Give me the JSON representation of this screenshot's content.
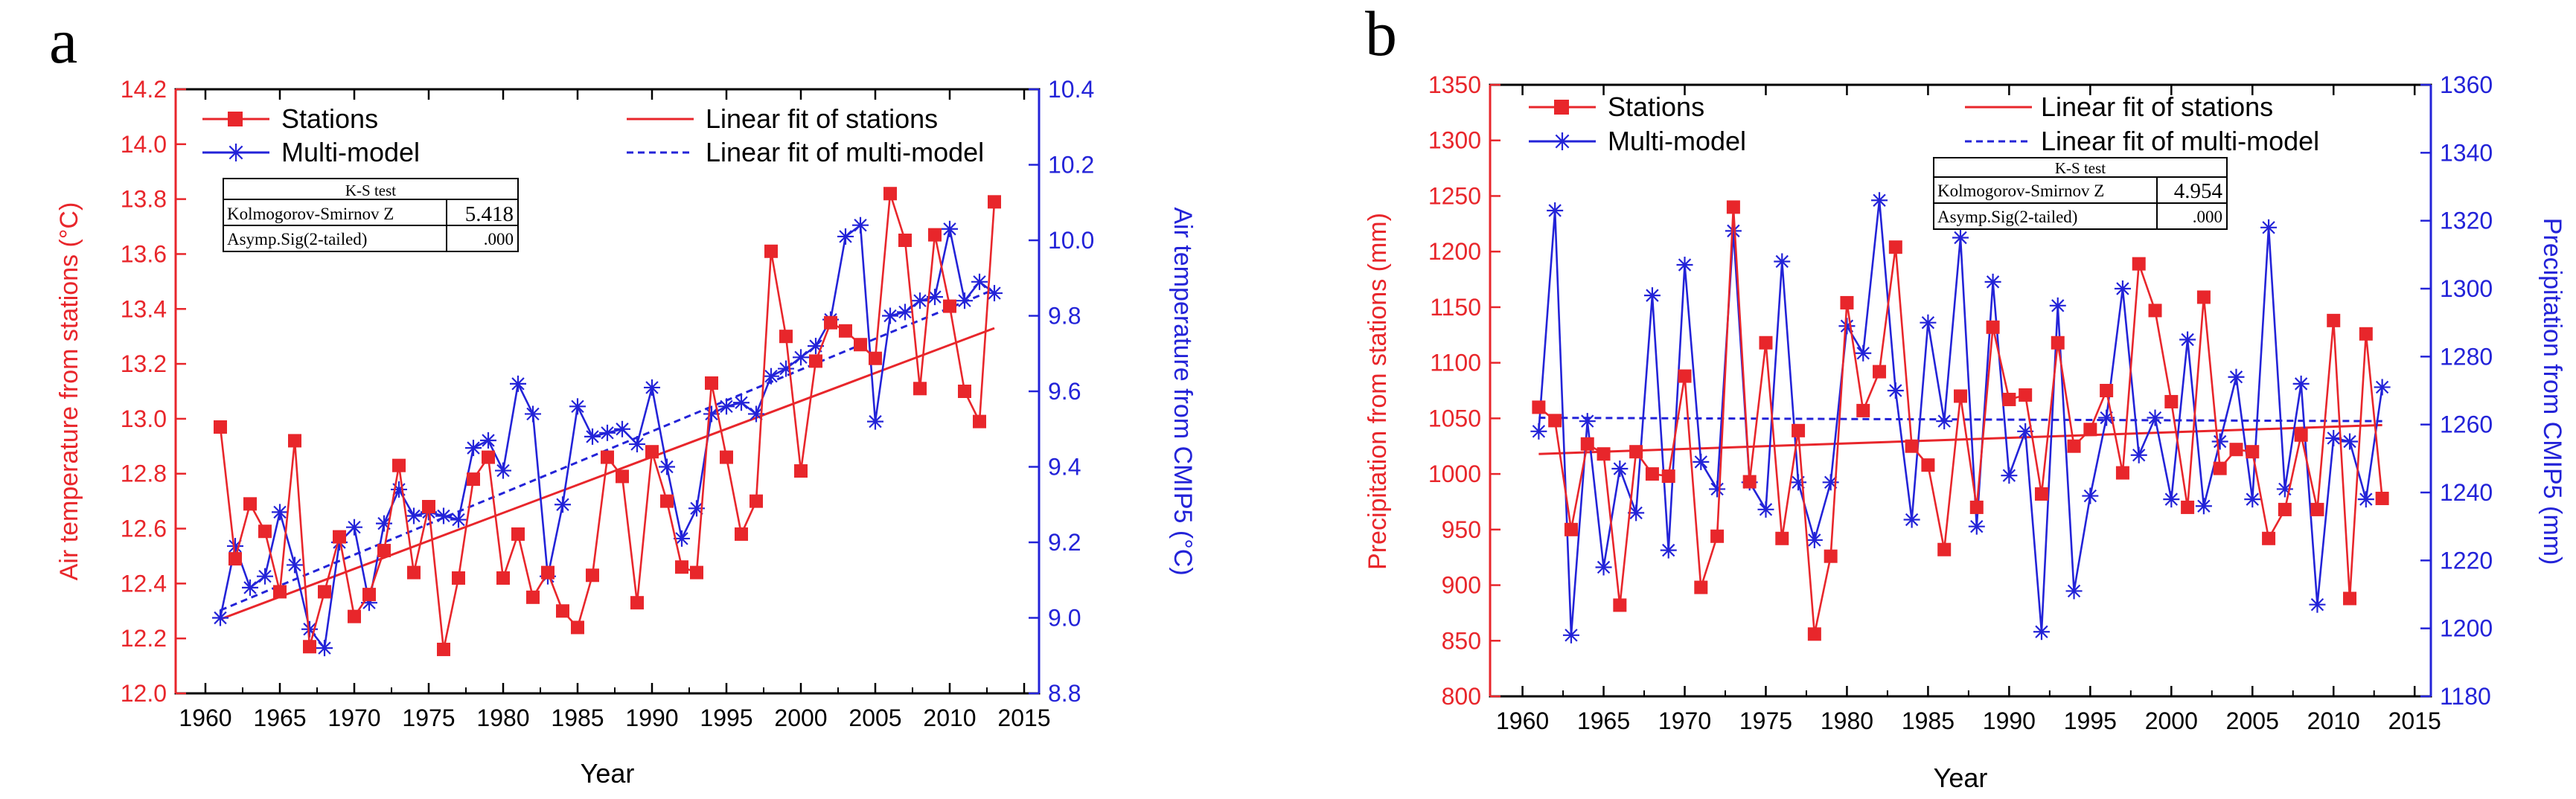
{
  "chart_data": [
    {
      "type": "line",
      "panel_label": "a",
      "xlabel": "Year",
      "ylabel_left": "Air temperature from stations (°C)",
      "ylabel_right": "Air temperature from CMIP5 (°C)",
      "xlim": [
        1958,
        2016
      ],
      "ylim_left": [
        12.0,
        14.2
      ],
      "ylim_right": [
        8.8,
        10.4
      ],
      "xticks": [
        "1960",
        "1965",
        "1970",
        "1975",
        "1980",
        "1985",
        "1990",
        "1995",
        "2000",
        "2005",
        "2010",
        "2015"
      ],
      "yticks_left": [
        "12.0",
        "12.2",
        "12.4",
        "12.6",
        "12.8",
        "13.0",
        "13.2",
        "13.4",
        "13.6",
        "13.8",
        "14.0",
        "14.2"
      ],
      "yticks_right": [
        "8.8",
        "9.0",
        "9.2",
        "9.4",
        "9.6",
        "9.8",
        "10.0",
        "10.2",
        "10.4"
      ],
      "legend": [
        "Stations",
        "Multi-model",
        "Linear fit of stations",
        "Linear fit of multi-model"
      ],
      "colors": {
        "stations": "#e8262b",
        "model": "#2323d8"
      },
      "ks_test": {
        "title": "K-S test",
        "row1_label": "Kolmogorov-Smirnov Z",
        "row1_value": "5.418",
        "row2_label": "Asymp.Sig(2-tailed)",
        "row2_value": ".000"
      },
      "series": [
        {
          "name": "Stations",
          "axis": "left",
          "start_year": 1961,
          "values": [
            12.97,
            12.49,
            12.69,
            12.59,
            12.37,
            12.92,
            12.17,
            12.37,
            12.57,
            12.28,
            12.36,
            12.52,
            12.83,
            12.44,
            12.68,
            12.16,
            12.42,
            12.78,
            12.86,
            12.42,
            12.58,
            12.35,
            12.44,
            12.3,
            12.24,
            12.43,
            12.86,
            12.79,
            12.33,
            12.88,
            12.7,
            12.46,
            12.44,
            13.13,
            12.86,
            12.58,
            12.7,
            13.61,
            13.3,
            12.81,
            13.21,
            13.35,
            13.32,
            13.27,
            13.22,
            13.82,
            13.65,
            13.11,
            13.67,
            13.41,
            13.1,
            12.99,
            13.79
          ]
        },
        {
          "name": "Multi-model",
          "axis": "right",
          "start_year": 1961,
          "values": [
            9.0,
            9.19,
            9.08,
            9.11,
            9.28,
            9.14,
            8.97,
            8.92,
            9.2,
            9.24,
            9.04,
            9.25,
            9.34,
            9.27,
            9.28,
            9.27,
            9.26,
            9.45,
            9.47,
            9.39,
            9.62,
            9.54,
            9.11,
            9.3,
            9.56,
            9.48,
            9.49,
            9.5,
            9.46,
            9.61,
            9.4,
            9.21,
            9.29,
            9.54,
            9.56,
            9.57,
            9.54,
            9.64,
            9.66,
            9.69,
            9.72,
            9.79,
            10.01,
            10.04,
            9.52,
            9.8,
            9.81,
            9.84,
            9.85,
            10.03,
            9.84,
            9.89,
            9.86
          ]
        },
        {
          "name": "Linear fit of stations",
          "axis": "left",
          "x": [
            1961,
            2013
          ],
          "values": [
            12.27,
            13.33
          ]
        },
        {
          "name": "Linear fit of multi-model",
          "axis": "right",
          "x": [
            1961,
            2013
          ],
          "values": [
            9.02,
            9.87
          ]
        }
      ]
    },
    {
      "type": "line",
      "panel_label": "b",
      "xlabel": "Year",
      "ylabel_left": "Precipitation from stations (mm)",
      "ylabel_right": "Precipitation from CMIP5 (mm)",
      "xlim": [
        1958,
        2016
      ],
      "ylim_left": [
        800,
        1350
      ],
      "ylim_right": [
        1180,
        1360
      ],
      "xticks": [
        "1960",
        "1965",
        "1970",
        "1975",
        "1980",
        "1985",
        "1990",
        "1995",
        "2000",
        "2005",
        "2010",
        "2015"
      ],
      "yticks_left": [
        "800",
        "850",
        "900",
        "950",
        "1000",
        "1050",
        "1100",
        "1150",
        "1200",
        "1250",
        "1300",
        "1350"
      ],
      "yticks_right": [
        "1180",
        "1200",
        "1220",
        "1240",
        "1260",
        "1280",
        "1300",
        "1320",
        "1340",
        "1360"
      ],
      "legend": [
        "Stations",
        "Multi-model",
        "Linear fit of stations",
        "Linear fit of multi-model"
      ],
      "colors": {
        "stations": "#e8262b",
        "model": "#2323d8"
      },
      "ks_test": {
        "title": "K-S test",
        "row1_label": "Kolmogorov-Smirnov Z",
        "row1_value": "4.954",
        "row2_label": "Asymp.Sig(2-tailed)",
        "row2_value": ".000"
      },
      "series": [
        {
          "name": "Stations",
          "axis": "left",
          "start_year": 1961,
          "values": [
            1060,
            1048,
            950,
            1027,
            1018,
            882,
            1020,
            1000,
            998,
            1088,
            898,
            944,
            1240,
            993,
            1118,
            942,
            1039,
            856,
            926,
            1154,
            1057,
            1092,
            1204,
            1025,
            1008,
            932,
            1070,
            970,
            1132,
            1067,
            1071,
            982,
            1118,
            1025,
            1040,
            1075,
            1001,
            1189,
            1147,
            1065,
            970,
            1159,
            1005,
            1022,
            1020,
            942,
            968,
            1035,
            968,
            1138,
            888,
            1126,
            978
          ]
        },
        {
          "name": "Multi-model",
          "axis": "right",
          "start_year": 1961,
          "values": [
            1258,
            1323,
            1198,
            1261,
            1218,
            1247,
            1234,
            1298,
            1223,
            1307,
            1249,
            1241,
            1317,
            1243,
            1235,
            1308,
            1243,
            1226,
            1243,
            1289,
            1281,
            1326,
            1270,
            1232,
            1290,
            1261,
            1315,
            1230,
            1302,
            1245,
            1258,
            1199,
            1295,
            1211,
            1239,
            1262,
            1300,
            1251,
            1262,
            1238,
            1285,
            1236,
            1255,
            1274,
            1238,
            1318,
            1241,
            1272,
            1207,
            1256,
            1255,
            1238,
            1271
          ]
        },
        {
          "name": "Linear fit of stations",
          "axis": "left",
          "x": [
            1961,
            2013
          ],
          "values": [
            1018,
            1044
          ]
        },
        {
          "name": "Linear fit of multi-model",
          "axis": "right",
          "x": [
            1961,
            2013
          ],
          "values": [
            1262,
            1261
          ]
        }
      ]
    }
  ]
}
